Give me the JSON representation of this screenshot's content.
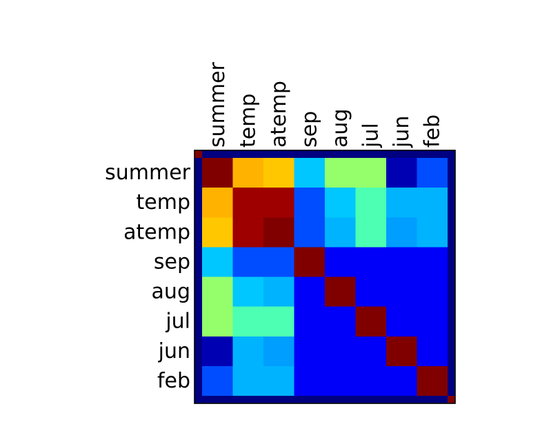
{
  "chart_data": {
    "type": "heatmap",
    "row_labels": [
      "summer",
      "temp",
      "atemp",
      "sep",
      "aug",
      "jul",
      "jun",
      "feb"
    ],
    "col_labels": [
      "summer",
      "temp",
      "atemp",
      "sep",
      "aug",
      "jul",
      "jun",
      "feb"
    ],
    "colormap": "jet",
    "color_range": [
      0,
      1
    ],
    "grid": false,
    "values": [
      [
        1.0,
        0.7,
        0.68,
        0.32,
        0.52,
        0.52,
        0.05,
        0.2
      ],
      [
        0.7,
        0.97,
        0.97,
        0.2,
        0.32,
        0.45,
        0.3,
        0.3
      ],
      [
        0.68,
        0.97,
        1.0,
        0.2,
        0.3,
        0.45,
        0.28,
        0.3
      ],
      [
        0.32,
        0.2,
        0.2,
        1.0,
        0.12,
        0.12,
        0.12,
        0.12
      ],
      [
        0.52,
        0.32,
        0.3,
        0.12,
        1.0,
        0.12,
        0.12,
        0.12
      ],
      [
        0.52,
        0.45,
        0.45,
        0.12,
        0.12,
        1.0,
        0.12,
        0.12
      ],
      [
        0.05,
        0.3,
        0.28,
        0.12,
        0.12,
        0.12,
        1.0,
        0.12
      ],
      [
        0.2,
        0.3,
        0.3,
        0.12,
        0.12,
        0.12,
        0.12,
        1.0
      ]
    ]
  }
}
